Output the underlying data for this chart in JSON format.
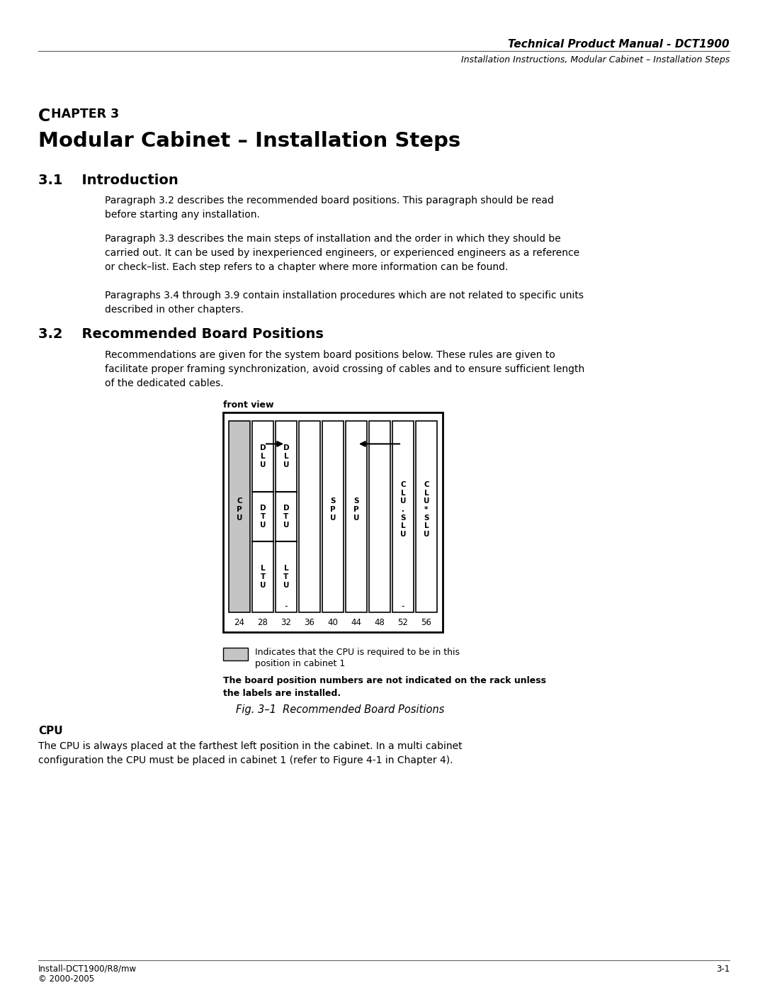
{
  "header_title": "Technical Product Manual - DCT1900",
  "header_subtitle": "Installation Instructions, Modular Cabinet – Installation Steps",
  "chapter_line1": "CHAPTER 3",
  "chapter_title": "Modular Cabinet – Installation Steps",
  "section_31_title": "3.1    Introduction",
  "para1": "Paragraph 3.2 describes the recommended board positions. This paragraph should be read\nbefore starting any installation.",
  "para2": "Paragraph 3.3 describes the main steps of installation and the order in which they should be\ncarried out. It can be used by inexperienced engineers, or experienced engineers as a reference\nor check–list. Each step refers to a chapter where more information can be found.",
  "para3": "Paragraphs 3.4 through 3.9 contain installation procedures which are not related to specific units\ndescribed in other chapters.",
  "section_32_title": "3.2    Recommended Board Positions",
  "para4": "Recommendations are given for the system board positions below. These rules are given to\nfacilitate proper framing synchronization, avoid crossing of cables and to ensure sufficient length\nof the dedicated cables.",
  "fig_label": "front view",
  "board_positions": [
    "24",
    "28",
    "32",
    "36",
    "40",
    "44",
    "48",
    "52",
    "56"
  ],
  "legend_text1a": "Indicates that the CPU is required to be in this",
  "legend_text1b": "position in cabinet 1",
  "legend_text2": "The board position numbers are not indicated on the rack unless\nthe labels are installed.",
  "fig_caption": "Fig. 3–1  Recommended Board Positions",
  "cpu_section_title": "CPU",
  "cpu_text": "The CPU is always placed at the farthest left position in the cabinet. In a multi cabinet\nconfiguration the CPU must be placed in cabinet 1 (refer to Figure 4-1 in Chapter 4).",
  "footer_left1": "Install-DCT1900/R8/mw",
  "footer_left2": "© 2000-2005",
  "footer_right": "3-1",
  "bg_color": "#ffffff",
  "text_color": "#000000"
}
